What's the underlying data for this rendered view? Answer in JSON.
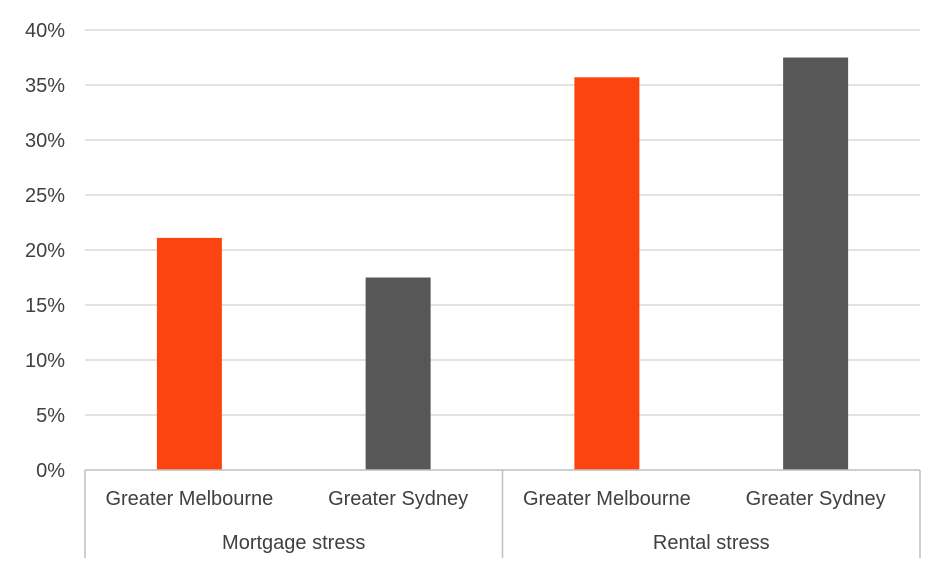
{
  "chart_data": {
    "type": "bar",
    "ylim": [
      0,
      40
    ],
    "y_ticks": [
      "0%",
      "5%",
      "10%",
      "15%",
      "20%",
      "25%",
      "30%",
      "35%",
      "40%"
    ],
    "grid": true,
    "groups": [
      {
        "label": "Mortgage stress",
        "bars": [
          {
            "category": "Greater Melbourne",
            "value": 21.1,
            "color": "#fc4411"
          },
          {
            "category": "Greater Sydney",
            "value": 17.5,
            "color": "#575757"
          }
        ]
      },
      {
        "label": "Rental stress",
        "bars": [
          {
            "category": "Greater Melbourne",
            "value": 35.7,
            "color": "#fc4411"
          },
          {
            "category": "Greater Sydney",
            "value": 37.5,
            "color": "#575757"
          }
        ]
      }
    ]
  }
}
